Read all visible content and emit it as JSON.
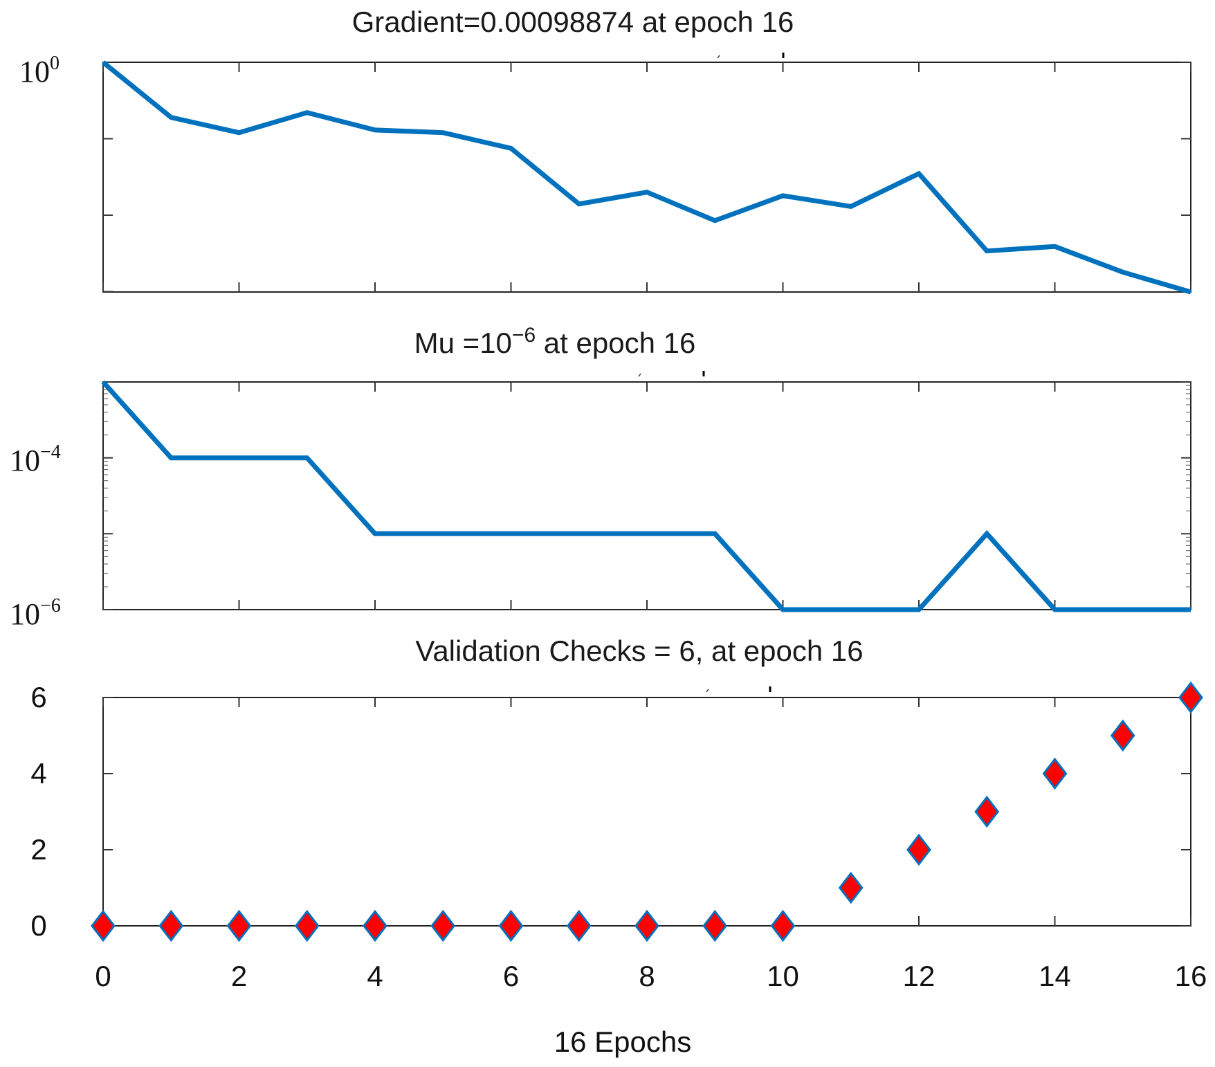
{
  "chart_data": [
    {
      "type": "line",
      "title": "Gradient=0.00098874 at epoch 16",
      "yscale": "log",
      "ylim": [
        0.00098874,
        1.0
      ],
      "ytick_label": {
        "base": "10",
        "exp": "0"
      },
      "x": [
        0,
        1,
        2,
        3,
        4,
        5,
        6,
        7,
        8,
        9,
        10,
        11,
        12,
        13,
        14,
        15,
        16
      ],
      "values": [
        1.0,
        0.19,
        0.12,
        0.22,
        0.13,
        0.12,
        0.075,
        0.014,
        0.02,
        0.0085,
        0.018,
        0.013,
        0.035,
        0.0034,
        0.0039,
        0.0018,
        0.00098874
      ],
      "xlim": [
        0,
        16
      ],
      "series_color": "#0072BD"
    },
    {
      "type": "line",
      "title_main": "Mu =10",
      "title_exp": "−6",
      "title_suffix": " at epoch 16",
      "yscale": "log",
      "ylim": [
        1e-06,
        0.001
      ],
      "ytick_labels": [
        {
          "base": "10",
          "exp": "−4"
        },
        {
          "base": "10",
          "exp": "−6"
        }
      ],
      "x": [
        0,
        1,
        2,
        3,
        4,
        5,
        6,
        7,
        8,
        9,
        10,
        11,
        12,
        13,
        14,
        15,
        16
      ],
      "values": [
        0.001,
        0.0001,
        0.0001,
        0.0001,
        1e-05,
        1e-05,
        1e-05,
        1e-05,
        1e-05,
        1e-05,
        1e-06,
        1e-06,
        1e-06,
        1e-05,
        1e-06,
        1e-06,
        1e-06
      ],
      "xlim": [
        0,
        16
      ],
      "series_color": "#0072BD"
    },
    {
      "type": "scatter",
      "title": "Validation Checks = 6, at epoch 16",
      "x": [
        0,
        1,
        2,
        3,
        4,
        5,
        6,
        7,
        8,
        9,
        10,
        11,
        12,
        13,
        14,
        15,
        16
      ],
      "values": [
        0,
        0,
        0,
        0,
        0,
        0,
        0,
        0,
        0,
        0,
        0,
        1,
        2,
        3,
        4,
        5,
        6
      ],
      "ylim": [
        0,
        6
      ],
      "yticks": [
        "0",
        "2",
        "4",
        "6"
      ],
      "xticks": [
        "0",
        "2",
        "4",
        "6",
        "8",
        "10",
        "12",
        "14",
        "16"
      ],
      "xlabel": "16 Epochs",
      "xlim": [
        0,
        16
      ],
      "marker": "diamond",
      "marker_fill": "#FF0000",
      "marker_edge": "#0072BD"
    }
  ]
}
